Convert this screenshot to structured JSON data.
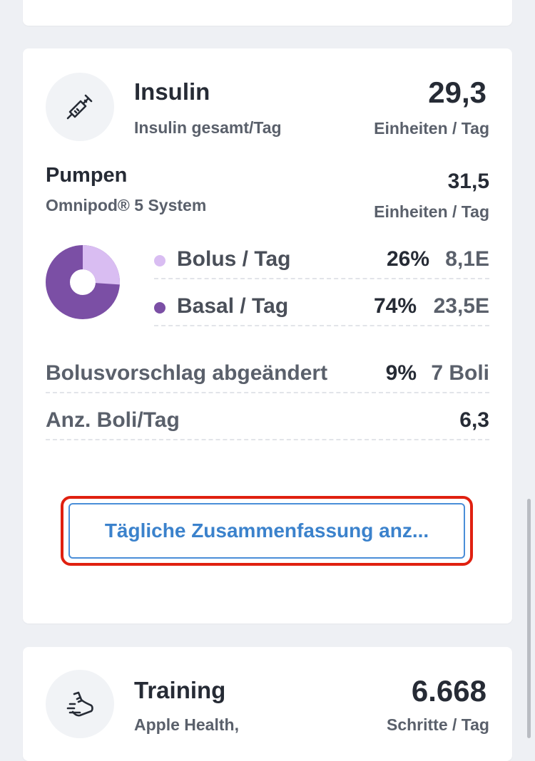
{
  "insulin": {
    "title": "Insulin",
    "subtitle": "Insulin gesamt/Tag",
    "total_value": "29,3",
    "total_unit": "Einheiten / Tag",
    "icon": "syringe-icon",
    "pump": {
      "title": "Pumpen",
      "system": "Omnipod® 5 System",
      "value": "31,5",
      "unit": "Einheiten / Tag"
    },
    "bolus": {
      "label": "Bolus / Tag",
      "percent": "26%",
      "amount": "8,1E",
      "fraction": 0.26,
      "color": "#d9bdf2"
    },
    "basal": {
      "label": "Basal / Tag",
      "percent": "74%",
      "amount": "23,5E",
      "fraction": 0.74,
      "color": "#7b4fa5"
    },
    "bolus_modified": {
      "label": "Bolusvorschlag abgeändert",
      "percent": "9%",
      "amount": "7 Boli"
    },
    "boluses_per_day": {
      "label": "Anz. Boli/Tag",
      "value": "6,3"
    },
    "summary_button": "Tägliche Zusammenfassung anz..."
  },
  "training": {
    "title": "Training",
    "subtitle": "Apple Health,",
    "value": "6.668",
    "unit": "Schritte / Tag",
    "icon": "sneaker-icon"
  },
  "colors": {
    "accent": "#3b82cc",
    "highlight": "#e02010",
    "card": "#ffffff",
    "background": "#eef0f4"
  }
}
